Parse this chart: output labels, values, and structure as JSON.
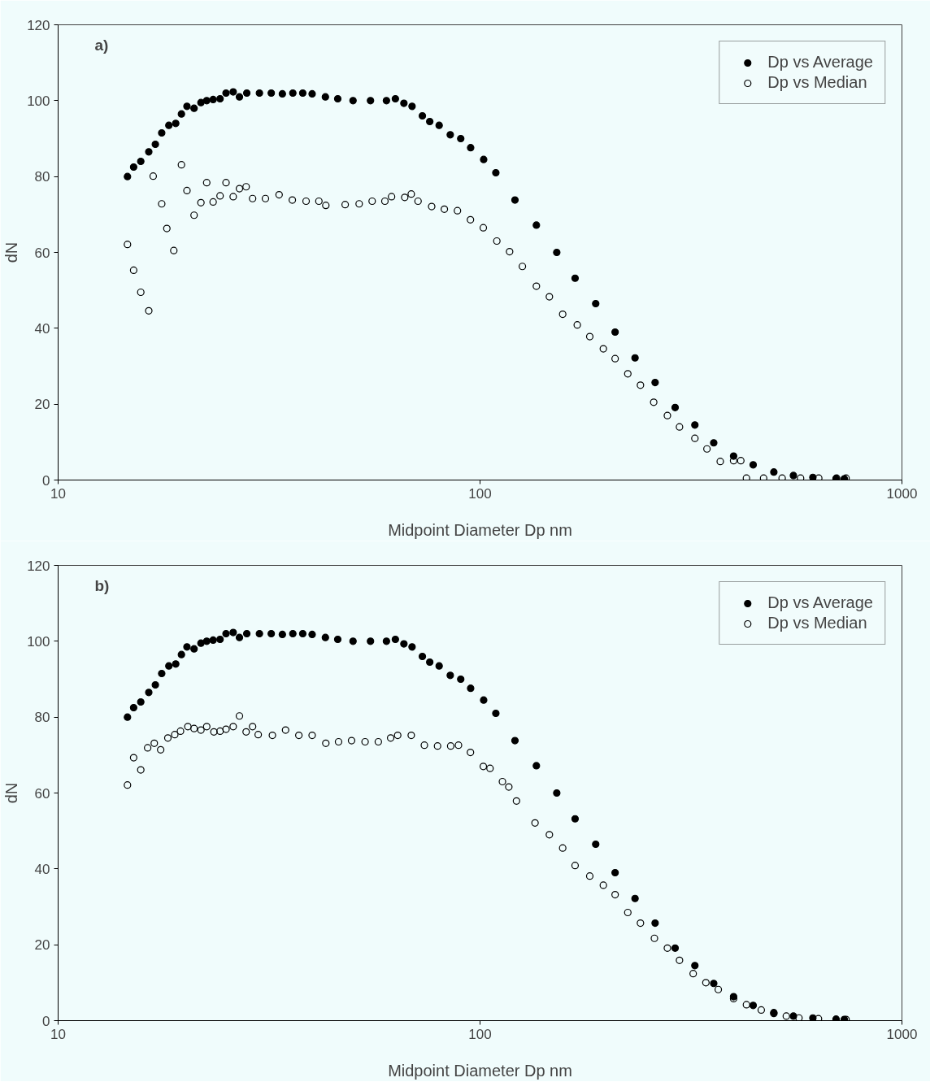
{
  "chart_data": [
    {
      "type": "scatter",
      "xlabel": "Midpoint Diameter Dp nm",
      "ylabel": "dN",
      "annotations": [
        "a)"
      ],
      "log": "x",
      "xlim": [
        10,
        1000
      ],
      "xticks": [
        10,
        100,
        1000
      ],
      "ylim": [
        0,
        120
      ],
      "yticks": [
        0,
        20,
        40,
        60,
        80,
        100,
        120
      ],
      "grid": false,
      "legend": "top right",
      "series": [
        {
          "name": "Dp vs Average",
          "color": "#000000",
          "marker": "circle",
          "x": [
            14.6,
            15.1,
            15.7,
            16.4,
            17.0,
            17.6,
            18.3,
            19.0,
            19.6,
            20.2,
            21.0,
            21.8,
            22.5,
            23.3,
            24.2,
            25.0,
            26.0,
            26.9,
            28,
            30,
            32,
            34,
            36,
            38,
            40,
            43,
            46,
            50,
            55,
            60,
            63,
            66,
            69,
            73,
            76,
            80,
            85,
            90,
            95,
            102,
            109,
            121,
            136,
            152,
            168,
            188,
            209,
            233,
            260,
            290,
            323,
            358,
            399,
            444,
            497,
            553,
            615,
            698,
            730
          ],
          "values": [
            80,
            82.5,
            84,
            86.5,
            88.5,
            91.5,
            93.5,
            94,
            96.5,
            98.5,
            98,
            99.5,
            100,
            100.3,
            100.5,
            102,
            102.3,
            101,
            102,
            102,
            102,
            101.8,
            102,
            102,
            101.8,
            101,
            100.5,
            100,
            100,
            100,
            100.5,
            99.3,
            98.5,
            96,
            94.5,
            93.5,
            91,
            90,
            87.6,
            84.5,
            81,
            73.8,
            67.2,
            60,
            53.2,
            46.5,
            39,
            32.2,
            25.7,
            19.1,
            14.5,
            9.8,
            6.3,
            4,
            2.1,
            1.2,
            0.7,
            0.4,
            0.3
          ]
        },
        {
          "name": "Dp vs Median",
          "color": "#000000",
          "marker": "open_circle",
          "x": [
            14.6,
            15.1,
            15.7,
            16.4,
            16.8,
            17.6,
            18.1,
            18.8,
            19.6,
            20.2,
            21.0,
            21.8,
            22.5,
            23.3,
            24.2,
            25.0,
            26.0,
            26.9,
            27.9,
            28.9,
            31.0,
            33.4,
            35.9,
            38.7,
            41.5,
            43.1,
            47.9,
            51.7,
            55.5,
            59.5,
            61.7,
            66.3,
            68.7,
            71.3,
            76.8,
            82.3,
            88.4,
            94.9,
            101.8,
            109.6,
            117.5,
            126,
            136,
            146,
            157,
            170,
            182,
            196,
            209,
            224,
            240,
            258,
            278,
            297,
            323,
            345,
            371,
            399,
            415,
            428,
            470,
            520,
            575,
            635,
            700,
            737
          ],
          "values": [
            62.1,
            55.3,
            49.5,
            44.6,
            80.1,
            72.8,
            66.3,
            60.5,
            83.1,
            76.3,
            69.8,
            73.1,
            78.4,
            73.3,
            74.9,
            78.4,
            74.7,
            76.8,
            77.3,
            74.2,
            74.2,
            75.2,
            73.8,
            73.5,
            73.5,
            72.4,
            72.6,
            72.8,
            73.5,
            73.5,
            74.7,
            74.5,
            75.4,
            73.5,
            72.1,
            71.4,
            71.0,
            68.6,
            66.5,
            63.0,
            60.2,
            56.3,
            51.1,
            48.3,
            43.7,
            40.9,
            37.8,
            34.6,
            32.0,
            28.0,
            25.0,
            20.5,
            17.0,
            14.0,
            11.0,
            8.2,
            4.9,
            5.1,
            5.1,
            0.5,
            0.5,
            0.5,
            0.5,
            0.5,
            0.5,
            0.5
          ]
        }
      ]
    },
    {
      "type": "scatter",
      "xlabel": "Midpoint Diameter Dp nm",
      "ylabel": "dN",
      "annotations": [
        "b)"
      ],
      "log": "x",
      "xlim": [
        10,
        1000
      ],
      "xticks": [
        10,
        100,
        1000
      ],
      "ylim": [
        0,
        120
      ],
      "yticks": [
        0,
        20,
        40,
        60,
        80,
        100,
        120
      ],
      "grid": false,
      "legend": "top right",
      "series": [
        {
          "name": "Dp vs Average",
          "color": "#000000",
          "marker": "circle",
          "x": [
            14.6,
            15.1,
            15.7,
            16.4,
            17.0,
            17.6,
            18.3,
            19.0,
            19.6,
            20.2,
            21.0,
            21.8,
            22.5,
            23.3,
            24.2,
            25.0,
            26.0,
            26.9,
            28,
            30,
            32,
            34,
            36,
            38,
            40,
            43,
            46,
            50,
            55,
            60,
            63,
            66,
            69,
            73,
            76,
            80,
            85,
            90,
            95,
            102,
            109,
            121,
            136,
            152,
            168,
            188,
            209,
            233,
            260,
            290,
            323,
            358,
            399,
            444,
            497,
            553,
            615,
            698,
            730
          ],
          "values": [
            80,
            82.5,
            84,
            86.5,
            88.5,
            91.5,
            93.5,
            94,
            96.5,
            98.5,
            98,
            99.5,
            100,
            100.3,
            100.5,
            102,
            102.3,
            101,
            102,
            102,
            102,
            101.8,
            102,
            102,
            101.8,
            101,
            100.5,
            100,
            100,
            100,
            100.5,
            99.3,
            98.5,
            96,
            94.5,
            93.5,
            91,
            90,
            87.6,
            84.5,
            81,
            73.8,
            67.2,
            60,
            53.2,
            46.5,
            39,
            32.2,
            25.7,
            19.1,
            14.5,
            9.8,
            6.3,
            4,
            2.1,
            1.2,
            0.7,
            0.4,
            0.3
          ]
        },
        {
          "name": "Dp vs Median",
          "color": "#000000",
          "marker": "open_circle",
          "x": [
            14.6,
            15.1,
            15.7,
            16.3,
            16.9,
            17.5,
            18.2,
            18.9,
            19.5,
            20.3,
            21.0,
            21.8,
            22.5,
            23.4,
            24.2,
            25.0,
            26.0,
            26.9,
            27.9,
            28.9,
            29.8,
            32.2,
            34.6,
            37.2,
            40.0,
            43.1,
            46.2,
            49.6,
            53.4,
            57.4,
            61.4,
            63.8,
            68.7,
            73.8,
            79.3,
            85.2,
            88.9,
            94.9,
            101.8,
            105.6,
            113,
            117,
            122,
            135,
            146,
            157,
            168,
            182,
            196,
            209,
            224,
            240,
            259,
            278,
            297,
            320,
            343,
            367,
            399,
            428,
            464,
            497,
            532,
            570,
            634,
            737
          ],
          "values": [
            62.1,
            69.3,
            66.1,
            71.9,
            73.1,
            71.4,
            74.5,
            75.4,
            76.3,
            77.5,
            77.0,
            76.6,
            77.5,
            76.1,
            76.3,
            76.8,
            77.5,
            80.3,
            76.1,
            77.5,
            75.4,
            75.2,
            76.6,
            75.2,
            75.2,
            73.1,
            73.5,
            73.8,
            73.5,
            73.5,
            74.5,
            75.2,
            75.2,
            72.6,
            72.4,
            72.4,
            72.6,
            70.7,
            67.0,
            66.5,
            63.0,
            61.6,
            57.9,
            52.1,
            49.0,
            45.5,
            40.9,
            38.1,
            35.7,
            33.2,
            28.5,
            25.7,
            21.7,
            19.1,
            15.9,
            12.4,
            10.0,
            8.2,
            5.8,
            4.2,
            2.8,
            1.9,
            1.2,
            0.7,
            0.5,
            0.3
          ]
        }
      ]
    }
  ]
}
